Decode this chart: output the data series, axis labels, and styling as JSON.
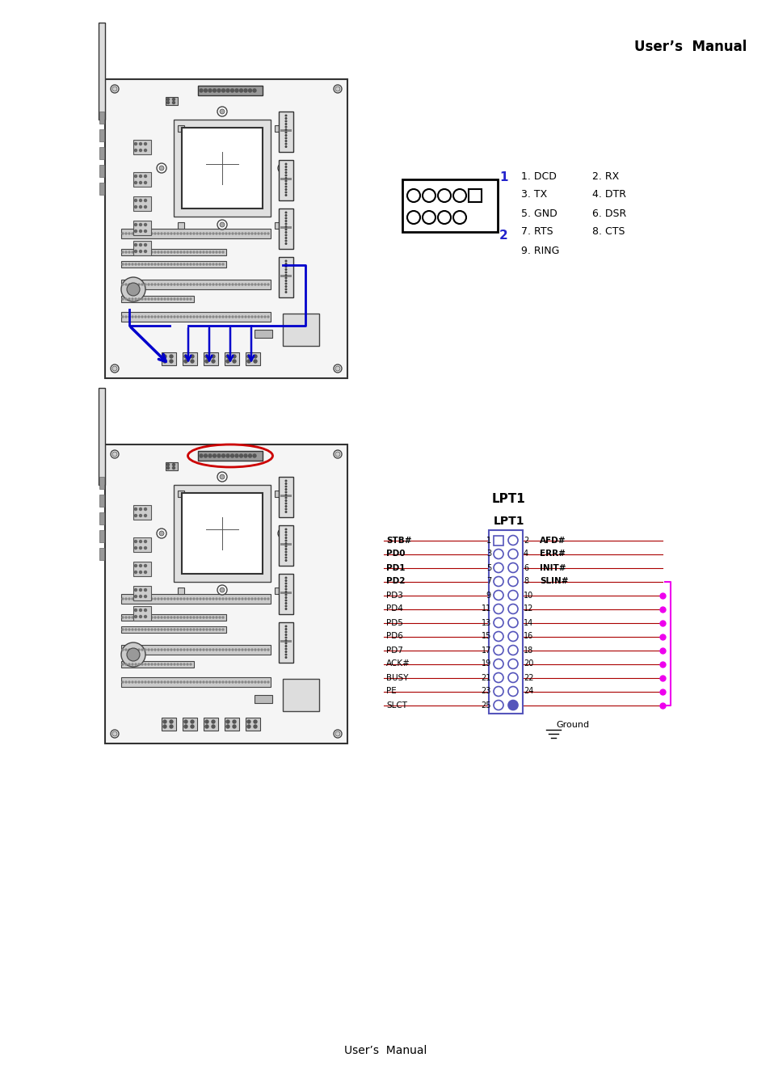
{
  "bg_color": "#ffffff",
  "header_text": "User’s  Manual",
  "footer_text": "User’s  Manual",
  "header_fontsize": 12,
  "footer_fontsize": 10,
  "com_pin_labels": [
    [
      "1. DCD",
      "2. RX"
    ],
    [
      "3. TX",
      "4. DTR"
    ],
    [
      "5. GND",
      "6. DSR"
    ],
    [
      "7. RTS",
      "8. CTS"
    ],
    [
      "9. RING",
      ""
    ]
  ],
  "com_pin_color": "#2222cc",
  "com_label_color": "#000000",
  "lpt_title1": "LPT1",
  "lpt_title2": "LPT1",
  "lpt_left_labels": [
    "STB#",
    "PD0",
    "PD1",
    "PD2",
    "PD3",
    "PD4",
    "PD5",
    "PD6",
    "PD7",
    "ACK#",
    "BUSY",
    "PE",
    "SLCT"
  ],
  "lpt_left_pins": [
    "1",
    "3",
    "5",
    "7",
    "9",
    "11",
    "13",
    "15",
    "17",
    "19",
    "21",
    "23",
    "25"
  ],
  "lpt_right_labels": [
    "AFD#",
    "ERR#",
    "INIT#",
    "SLIN#",
    "",
    "",
    "",
    "",
    "",
    "",
    "",
    "",
    ""
  ],
  "lpt_right_pins": [
    "2",
    "4",
    "6",
    "8",
    "10",
    "12",
    "14",
    "16",
    "18",
    "20",
    "22",
    "24",
    ""
  ],
  "lpt_connector_color": "#5555bb",
  "lpt_line_color": "#aa0000",
  "lpt_pink_color": "#ee00ee",
  "ground_symbol": "Ground",
  "mb_outline_color": "#333333",
  "mb_line_color": "#444444",
  "mb_bg_color": "#f5f5f5",
  "blue_arrow_color": "#0000cc",
  "red_circle_color": "#cc0000"
}
